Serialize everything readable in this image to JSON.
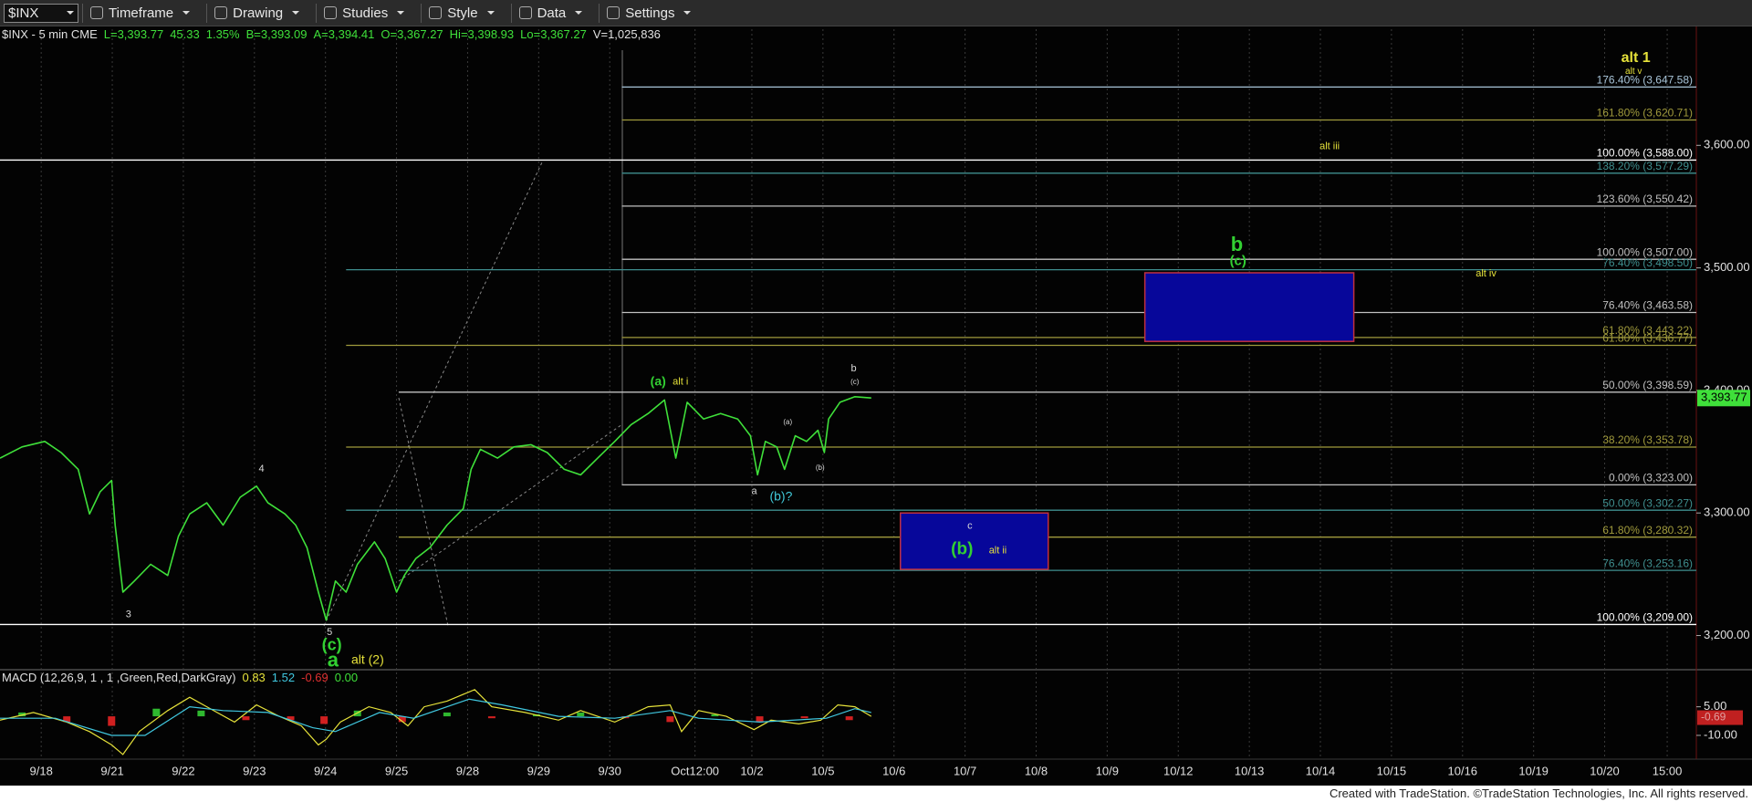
{
  "toolbar": {
    "symbol": "$INX",
    "items": [
      "Timeframe",
      "Drawing",
      "Studies",
      "Style",
      "Data",
      "Settings"
    ]
  },
  "footer": "Created with TradeStation. ©TradeStation Technologies, Inc. All rights reserved.",
  "chart_data": {
    "type": "line",
    "header": [
      {
        "text": "$INX - 5 min  CME",
        "color": "#e0e0e0"
      },
      {
        "text": "L=3,393.77",
        "color": "#3fe03a"
      },
      {
        "text": "45.33",
        "color": "#3fe03a"
      },
      {
        "text": "1.35%",
        "color": "#3fe03a"
      },
      {
        "text": "B=3,393.09",
        "color": "#3fe03a"
      },
      {
        "text": "A=3,394.41",
        "color": "#3fe03a"
      },
      {
        "text": "O=3,367.27",
        "color": "#3fe03a"
      },
      {
        "text": "Hi=3,398.93",
        "color": "#3fe03a"
      },
      {
        "text": "Lo=3,367.27",
        "color": "#3fe03a"
      },
      {
        "text": "V=1,025,836",
        "color": "#e0e0e0"
      }
    ],
    "series": [
      {
        "color": "#3fe03a",
        "x": [
          -0.58,
          -0.27,
          0.05,
          0.28,
          0.52,
          0.68,
          0.83,
          0.99,
          1.04,
          1.15,
          1.31,
          1.54,
          1.78,
          1.93,
          2.09,
          2.33,
          2.56,
          2.8,
          3.03,
          3.19,
          3.43,
          3.58,
          3.74,
          3.9,
          4.01,
          4.14,
          4.29,
          4.45,
          4.69,
          4.84,
          5.0,
          5.11,
          5.27,
          5.47,
          5.71,
          5.94,
          6.05,
          6.18,
          6.42,
          6.65,
          6.89,
          7.12,
          7.36,
          7.59,
          7.83,
          8.07,
          8.3,
          8.54,
          8.77,
          8.93,
          9.09,
          9.32,
          9.56,
          9.8,
          9.98,
          10.08,
          10.19,
          10.35,
          10.46,
          10.61,
          10.77,
          10.93,
          11.02,
          11.08,
          11.24,
          11.45,
          11.68
        ],
        "values": [
          3344.8,
          3353.9,
          3358.4,
          3349.3,
          3335.6,
          3299.2,
          3317.4,
          3326.5,
          3290.1,
          3235.4,
          3244.5,
          3258.1,
          3249.0,
          3280.9,
          3299.2,
          3308.3,
          3290.1,
          3312.8,
          3321.9,
          3308.3,
          3299.2,
          3290.1,
          3271.8,
          3235.4,
          3212.6,
          3244.5,
          3235.4,
          3258.1,
          3276.4,
          3262.7,
          3235.4,
          3249.0,
          3262.7,
          3271.8,
          3290.1,
          3303.7,
          3335.6,
          3352.0,
          3344.8,
          3353.9,
          3355.7,
          3349.3,
          3335.6,
          3331.1,
          3344.8,
          3358.4,
          3372.1,
          3381.2,
          3392.2,
          3344.8,
          3390.3,
          3376.7,
          3381.2,
          3376.7,
          3363.0,
          3331.1,
          3358.4,
          3353.9,
          3335.6,
          3363.0,
          3358.4,
          3367.5,
          3349.3,
          3376.7,
          3390.3,
          3394.9,
          3393.8
        ]
      }
    ],
    "xlim": [
      -0.58,
      23.29
    ],
    "xticks": [
      {
        "value": 0,
        "label": "9/18"
      },
      {
        "value": 1,
        "label": "9/21"
      },
      {
        "value": 2,
        "label": "9/22"
      },
      {
        "value": 3,
        "label": "9/23"
      },
      {
        "value": 4,
        "label": "9/24"
      },
      {
        "value": 5,
        "label": "9/25"
      },
      {
        "value": 6,
        "label": "9/28"
      },
      {
        "value": 7,
        "label": "9/29"
      },
      {
        "value": 8,
        "label": "9/30"
      },
      {
        "value": 9.2,
        "label": "Oct12:00"
      },
      {
        "value": 10,
        "label": "10/2"
      },
      {
        "value": 11,
        "label": "10/5"
      },
      {
        "value": 12,
        "label": "10/6"
      },
      {
        "value": 13,
        "label": "10/7"
      },
      {
        "value": 14,
        "label": "10/8"
      },
      {
        "value": 15,
        "label": "10/9"
      },
      {
        "value": 16,
        "label": "10/12"
      },
      {
        "value": 17,
        "label": "10/13"
      },
      {
        "value": 18,
        "label": "10/14"
      },
      {
        "value": 19,
        "label": "10/15"
      },
      {
        "value": 20,
        "label": "10/16"
      },
      {
        "value": 21,
        "label": "10/19"
      },
      {
        "value": 22,
        "label": "10/20"
      },
      {
        "value": 22.88,
        "label": "15:00"
      }
    ],
    "ylim": [
      3173.6,
      3698.5
    ],
    "yticks": [
      {
        "value": 3200,
        "label": "3,200.00"
      },
      {
        "value": 3300,
        "label": "3,300.00"
      },
      {
        "value": 3400,
        "label": "3,400.00"
      },
      {
        "value": 3500,
        "label": "3,500.00"
      },
      {
        "value": 3600,
        "label": "3,600.00"
      }
    ],
    "grid": true,
    "last_price": {
      "value": 3393.77,
      "label": "3,393.77",
      "color": "#3fe03a"
    },
    "levels": [
      {
        "value": 3647.58,
        "label": "176.40% (3,647.58)",
        "color": "#a8c4d8",
        "x0": 8.17
      },
      {
        "value": 3620.71,
        "label": "161.80% (3,620.71)",
        "color": "#a09a3c",
        "x0": 8.17
      },
      {
        "value": 3588.0,
        "label": "100.00% (3,588.00)",
        "color": "#ffffff",
        "x0": -0.58
      },
      {
        "value": 3577.29,
        "label": "138.20% (3,577.29)",
        "color": "#3f8f8f",
        "x0": 8.17
      },
      {
        "value": 3550.42,
        "label": "123.60% (3,550.42)",
        "color": "#c0c0c0",
        "x0": 8.17
      },
      {
        "value": 3507.0,
        "label": "100.00% (3,507.00)",
        "color": "#c0c0c0",
        "x0": 8.17
      },
      {
        "value": 3498.5,
        "label": "76.40% (3,498.50)",
        "color": "#3f8f8f",
        "x0": 4.29
      },
      {
        "value": 3463.58,
        "label": "76.40% (3,463.58)",
        "color": "#c0c0c0",
        "x0": 8.17
      },
      {
        "value": 3443.22,
        "label": "61.80% (3,443.22)",
        "color": "#a09a3c",
        "x0": 8.17
      },
      {
        "value": 3436.77,
        "label": "61.80% (3,436.77)",
        "color": "#a09a3c",
        "x0": 4.29
      },
      {
        "value": 3398.59,
        "label": "50.00% (3,398.59)",
        "color": "#c0c0c0",
        "x0": 5.03
      },
      {
        "value": 3353.78,
        "label": "38.20% (3,353.78)",
        "color": "#a09a3c",
        "x0": 4.29
      },
      {
        "value": 3323.0,
        "label": "0.00% (3,323.00)",
        "color": "#c0c0c0",
        "x0": 8.17
      },
      {
        "value": 3302.27,
        "label": "50.00% (3,302.27)",
        "color": "#3f8f8f",
        "x0": 4.29
      },
      {
        "value": 3280.32,
        "label": "61.80% (3,280.32)",
        "color": "#a09a3c",
        "x0": 5.03
      },
      {
        "value": 3253.16,
        "label": "76.40% (3,253.16)",
        "color": "#3f8f8f",
        "x0": 5.03
      },
      {
        "value": 3209.0,
        "label": "100.00% (3,209.00)",
        "color": "#ffffff",
        "x0": -0.58
      }
    ],
    "zones": [
      {
        "x0": 15.53,
        "x1": 18.47,
        "y0": 3440,
        "y1": 3496,
        "fill": "#07079a",
        "border": "#c03040"
      },
      {
        "x0": 12.09,
        "x1": 14.17,
        "y0": 3254,
        "y1": 3300,
        "fill": "#07079a",
        "border": "#c03040"
      }
    ],
    "annotations": [
      {
        "text": "alt 1",
        "color": "#e6e23a"
      },
      {
        "text": "alt v",
        "color": "#e6e23a"
      },
      {
        "text": "alt iii",
        "color": "#e6e23a"
      },
      {
        "text": "b",
        "color": "#32d032"
      },
      {
        "text": "(c)",
        "color": "#32d032"
      },
      {
        "text": "alt iv",
        "color": "#e6e23a"
      },
      {
        "text": "(a)",
        "color": "#32d032"
      },
      {
        "text": "alt i",
        "color": "#e6e23a"
      },
      {
        "text": "b",
        "color": "#d8d8d8"
      },
      {
        "text": "(c)",
        "color": "#d8d8d8"
      },
      {
        "text": "(a)",
        "color": "#d8d8d8"
      },
      {
        "text": "(b)",
        "color": "#d8d8d8"
      },
      {
        "text": "a",
        "color": "#d8d8d8"
      },
      {
        "text": "(b)?",
        "color": "#40c8d8"
      },
      {
        "text": "c",
        "color": "#d8d8d8"
      },
      {
        "text": "(b)",
        "color": "#32d032"
      },
      {
        "text": "alt ii",
        "color": "#e6e23a"
      },
      {
        "text": "4",
        "color": "#d8d8d8"
      },
      {
        "text": "3",
        "color": "#d8d8d8"
      },
      {
        "text": "5",
        "color": "#d8d8d8"
      },
      {
        "text": "(c)",
        "color": "#32d032"
      },
      {
        "text": "a",
        "color": "#32d032"
      },
      {
        "text": "alt (2)",
        "color": "#e6e23a"
      }
    ],
    "macd": {
      "header": [
        {
          "text": "MACD (12,26,9, 1 , 1 ,Green,Red,DarkGray)",
          "color": "#e0e0e0"
        },
        {
          "text": "0.83",
          "color": "#e6e23a"
        },
        {
          "text": "1.52",
          "color": "#40c8e0"
        },
        {
          "text": "-0.69",
          "color": "#e03030"
        },
        {
          "text": "0.00",
          "color": "#3fe03a"
        }
      ],
      "ylim": [
        -21.5,
        23.5
      ],
      "yticks": [
        {
          "value": 5,
          "label": "5.00"
        },
        {
          "value": -10,
          "label": "-10.00"
        }
      ],
      "last_label": {
        "value": -0.69,
        "label": "-0.69",
        "color": "#c02020"
      },
      "series": [
        {
          "color": "#e6e23a",
          "x": [
            -0.58,
            -0.11,
            0.36,
            0.68,
            0.99,
            1.15,
            1.38,
            1.78,
            2.09,
            2.33,
            2.72,
            3.03,
            3.35,
            3.66,
            3.9,
            4.01,
            4.21,
            4.61,
            4.92,
            5.16,
            5.39,
            5.71,
            6.1,
            6.34,
            6.81,
            7.28,
            7.59,
            8.07,
            8.54,
            8.85,
            9.01,
            9.25,
            9.64,
            10.03,
            10.27,
            10.66,
            10.97,
            11.21,
            11.45,
            11.68
          ],
          "values": [
            -2,
            2,
            -3,
            -8,
            -15,
            -20,
            -8,
            3,
            10,
            5,
            -3,
            6,
            0,
            -5,
            -15,
            -12,
            -3,
            5,
            2,
            -5,
            5,
            8,
            14,
            5,
            2,
            -2,
            3,
            -3,
            5,
            6,
            -8,
            3,
            0,
            -7,
            -2,
            -4,
            -2,
            6,
            5,
            0
          ]
        },
        {
          "color": "#40c8e0",
          "x": [
            -0.58,
            0.2,
            0.99,
            1.46,
            2.09,
            2.56,
            3.19,
            3.82,
            4.14,
            4.76,
            5.24,
            6.02,
            6.49,
            7.28,
            8.07,
            8.85,
            9.25,
            10.11,
            11.05,
            11.45,
            11.68
          ],
          "values": [
            -1,
            -1,
            -10,
            -10,
            5,
            3,
            2,
            -6,
            -8,
            2,
            -1,
            9,
            6,
            0,
            -1,
            3,
            -1,
            -3,
            -1,
            4,
            2
          ]
        }
      ],
      "histogram": {
        "up_color": "#2fb82f",
        "down_color": "#d02020",
        "x": [
          -0.27,
          0.36,
          0.99,
          1.62,
          2.25,
          2.88,
          3.51,
          3.98,
          4.45,
          5.08,
          5.71,
          6.34,
          6.97,
          7.59,
          8.22,
          8.85,
          9.48,
          10.11,
          10.74,
          11.37
        ],
        "values": [
          2,
          -3,
          -5,
          4,
          3,
          -2,
          -2,
          -4,
          3,
          -3,
          2,
          -1,
          1,
          2,
          -1,
          -3,
          1,
          -3,
          -1,
          -2
        ]
      }
    }
  }
}
